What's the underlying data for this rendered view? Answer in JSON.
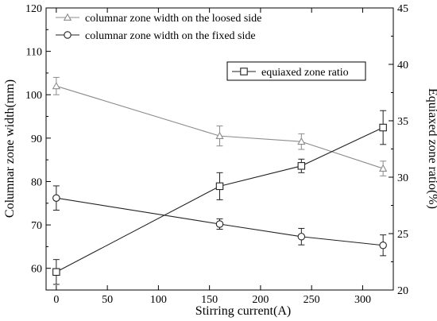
{
  "chart_data": {
    "type": "line",
    "x": [
      0,
      160,
      240,
      320
    ],
    "xlabel": "Stirring current(A)",
    "xlim": [
      -10,
      330
    ],
    "xticks": [
      0,
      50,
      100,
      150,
      200,
      250,
      300
    ],
    "ylabel": "Columnar zone width(mm)",
    "ylim": [
      55,
      120
    ],
    "yticks": [
      60,
      70,
      80,
      90,
      100,
      110,
      120
    ],
    "y2label": "Equiaxed zone ratio(%)",
    "y2lim": [
      20,
      45
    ],
    "y2ticks": [
      20,
      25,
      30,
      35,
      40,
      45
    ],
    "grid": false,
    "series": [
      {
        "name": "columnar zone width on the loosed side",
        "axis": "left",
        "marker": "triangle",
        "color": "#8c8c8c",
        "values": [
          102,
          90.5,
          89.2,
          83
        ],
        "error": [
          2,
          2.3,
          1.8,
          1.7
        ]
      },
      {
        "name": "columnar zone width on the fixed side",
        "axis": "left",
        "marker": "circle",
        "color": "#222222",
        "values": [
          76.2,
          70.2,
          67.3,
          65.3
        ],
        "error": [
          2.8,
          1.2,
          1.9,
          2.4
        ]
      },
      {
        "name": "equiaxed zone ratio",
        "axis": "right",
        "marker": "square",
        "color": "#222222",
        "values": [
          21.6,
          29.2,
          31,
          34.4
        ],
        "error": [
          1.1,
          1.2,
          0.6,
          1.5
        ]
      }
    ],
    "legends": [
      {
        "placement": "top-left",
        "series": [
          0,
          1
        ]
      },
      {
        "placement": "top-right",
        "series": [
          2
        ]
      }
    ]
  }
}
